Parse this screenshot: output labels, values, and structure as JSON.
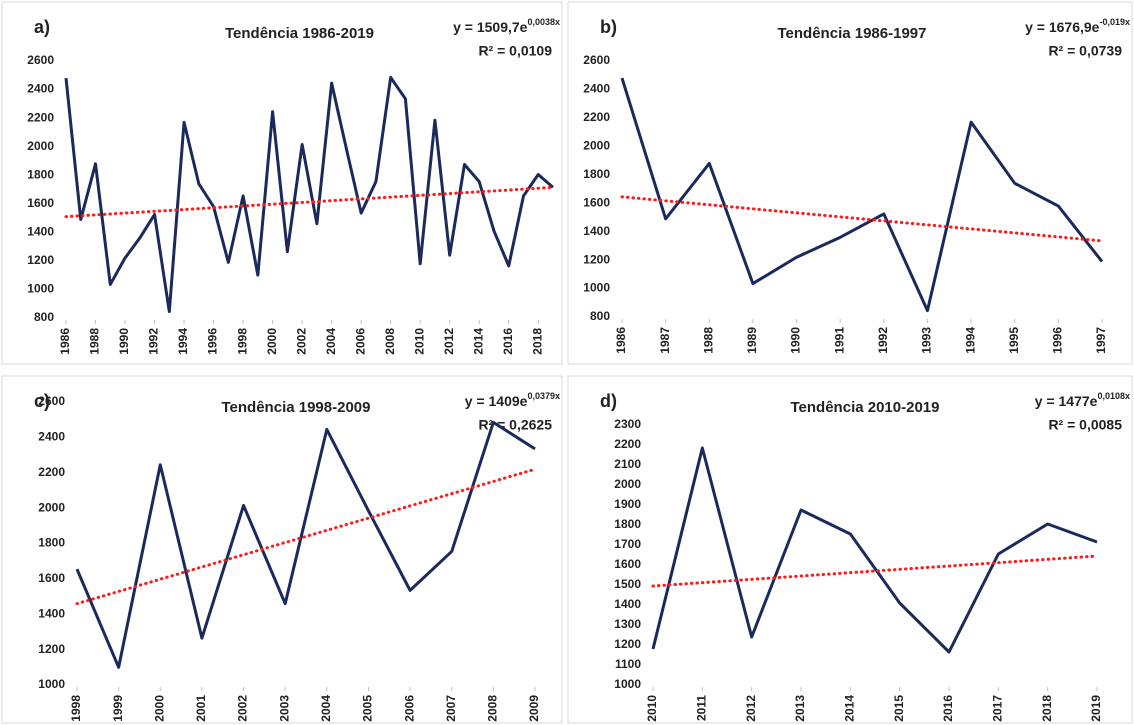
{
  "chart_data": [
    {
      "type": "line",
      "panel_label": "a)",
      "title": "Tendência 1986-2019",
      "equation": {
        "base": "y = 1509,7e",
        "exponent": "0,0038x"
      },
      "r2": "R² = 0,0109",
      "x": [
        1986,
        1987,
        1988,
        1989,
        1990,
        1991,
        1992,
        1993,
        1994,
        1995,
        1996,
        1997,
        1998,
        1999,
        2000,
        2001,
        2002,
        2003,
        2004,
        2005,
        2006,
        2007,
        2008,
        2009,
        2010,
        2011,
        2012,
        2013,
        2014,
        2015,
        2016,
        2017,
        2018,
        2019
      ],
      "series": [
        {
          "color": "#1b2a5c",
          "values": [
            2480,
            1490,
            1880,
            1035,
            1220,
            1360,
            1525,
            845,
            2170,
            1740,
            1580,
            1190,
            1655,
            1100,
            2245,
            1265,
            2015,
            1460,
            2445,
            1985,
            1535,
            1755,
            2485,
            2335,
            1180,
            2185,
            1240,
            1875,
            1755,
            1410,
            1165,
            1655,
            1805,
            1715
          ]
        }
      ],
      "trend": {
        "color": "#ff1a1a",
        "x": [
          1986,
          2019
        ],
        "values": [
          1510,
          1715
        ]
      },
      "xlim": [
        1986,
        2019
      ],
      "xticks": [
        1986,
        1988,
        1990,
        1992,
        1994,
        1996,
        1998,
        2000,
        2002,
        2004,
        2006,
        2008,
        2010,
        2012,
        2014,
        2016,
        2018
      ],
      "ylim": [
        800,
        2600
      ],
      "yticks": [
        800,
        1000,
        1200,
        1400,
        1600,
        1800,
        2000,
        2200,
        2400,
        2600
      ]
    },
    {
      "type": "line",
      "panel_label": "b)",
      "title": "Tendência 1986-1997",
      "equation": {
        "base": "y = 1676,9e",
        "exponent": "-0,019x"
      },
      "r2": "R² = 0,0739",
      "x": [
        1986,
        1987,
        1988,
        1989,
        1990,
        1991,
        1992,
        1993,
        1994,
        1995,
        1996,
        1997
      ],
      "series": [
        {
          "color": "#1b2a5c",
          "values": [
            2480,
            1490,
            1880,
            1035,
            1220,
            1360,
            1525,
            845,
            2170,
            1740,
            1580,
            1190
          ]
        }
      ],
      "trend": {
        "color": "#ff1a1a",
        "x": [
          1986,
          1997
        ],
        "values": [
          1645,
          1335
        ]
      },
      "xlim": [
        1986,
        1997
      ],
      "xticks": [
        1986,
        1987,
        1988,
        1989,
        1990,
        1991,
        1992,
        1993,
        1994,
        1995,
        1996,
        1997
      ],
      "ylim": [
        800,
        2600
      ],
      "yticks": [
        800,
        1000,
        1200,
        1400,
        1600,
        1800,
        2000,
        2200,
        2400,
        2600
      ]
    },
    {
      "type": "line",
      "panel_label": "c)",
      "title": "Tendência 1998-2009",
      "equation": {
        "base": "y = 1409e",
        "exponent": "0,0379x"
      },
      "r2": "R² = 0,2625",
      "x": [
        1998,
        1999,
        2000,
        2001,
        2002,
        2003,
        2004,
        2005,
        2006,
        2007,
        2008,
        2009
      ],
      "series": [
        {
          "color": "#1b2a5c",
          "values": [
            1655,
            1100,
            2245,
            1265,
            2015,
            1460,
            2445,
            1985,
            1535,
            1755,
            2485,
            2335
          ]
        }
      ],
      "trend": {
        "color": "#ff1a1a",
        "x": [
          1998,
          2009
        ],
        "values": [
          1460,
          2220
        ]
      },
      "xlim": [
        1998,
        2009
      ],
      "xticks": [
        1998,
        1999,
        2000,
        2001,
        2002,
        2003,
        2004,
        2005,
        2006,
        2007,
        2008,
        2009
      ],
      "ylim": [
        1000,
        2600
      ],
      "yticks": [
        1000,
        1200,
        1400,
        1600,
        1800,
        2000,
        2200,
        2400,
        2600
      ]
    },
    {
      "type": "line",
      "panel_label": "d)",
      "title": "Tendência 2010-2019",
      "equation": {
        "base": "y = 1477e",
        "exponent": "0,0108x"
      },
      "r2": "R² = 0,0085",
      "x": [
        2010,
        2011,
        2012,
        2013,
        2014,
        2015,
        2016,
        2017,
        2018,
        2019
      ],
      "series": [
        {
          "color": "#1b2a5c",
          "values": [
            1180,
            2185,
            1240,
            1875,
            1755,
            1410,
            1165,
            1655,
            1805,
            1715
          ]
        }
      ],
      "trend": {
        "color": "#ff1a1a",
        "x": [
          2010,
          2019
        ],
        "values": [
          1495,
          1645
        ]
      },
      "xlim": [
        2010,
        2019
      ],
      "xticks": [
        2010,
        2011,
        2012,
        2013,
        2014,
        2015,
        2016,
        2017,
        2018,
        2019
      ],
      "ylim": [
        1000,
        2300
      ],
      "yticks": [
        1000,
        1100,
        1200,
        1300,
        1400,
        1500,
        1600,
        1700,
        1800,
        1900,
        2000,
        2100,
        2200,
        2300
      ]
    }
  ]
}
